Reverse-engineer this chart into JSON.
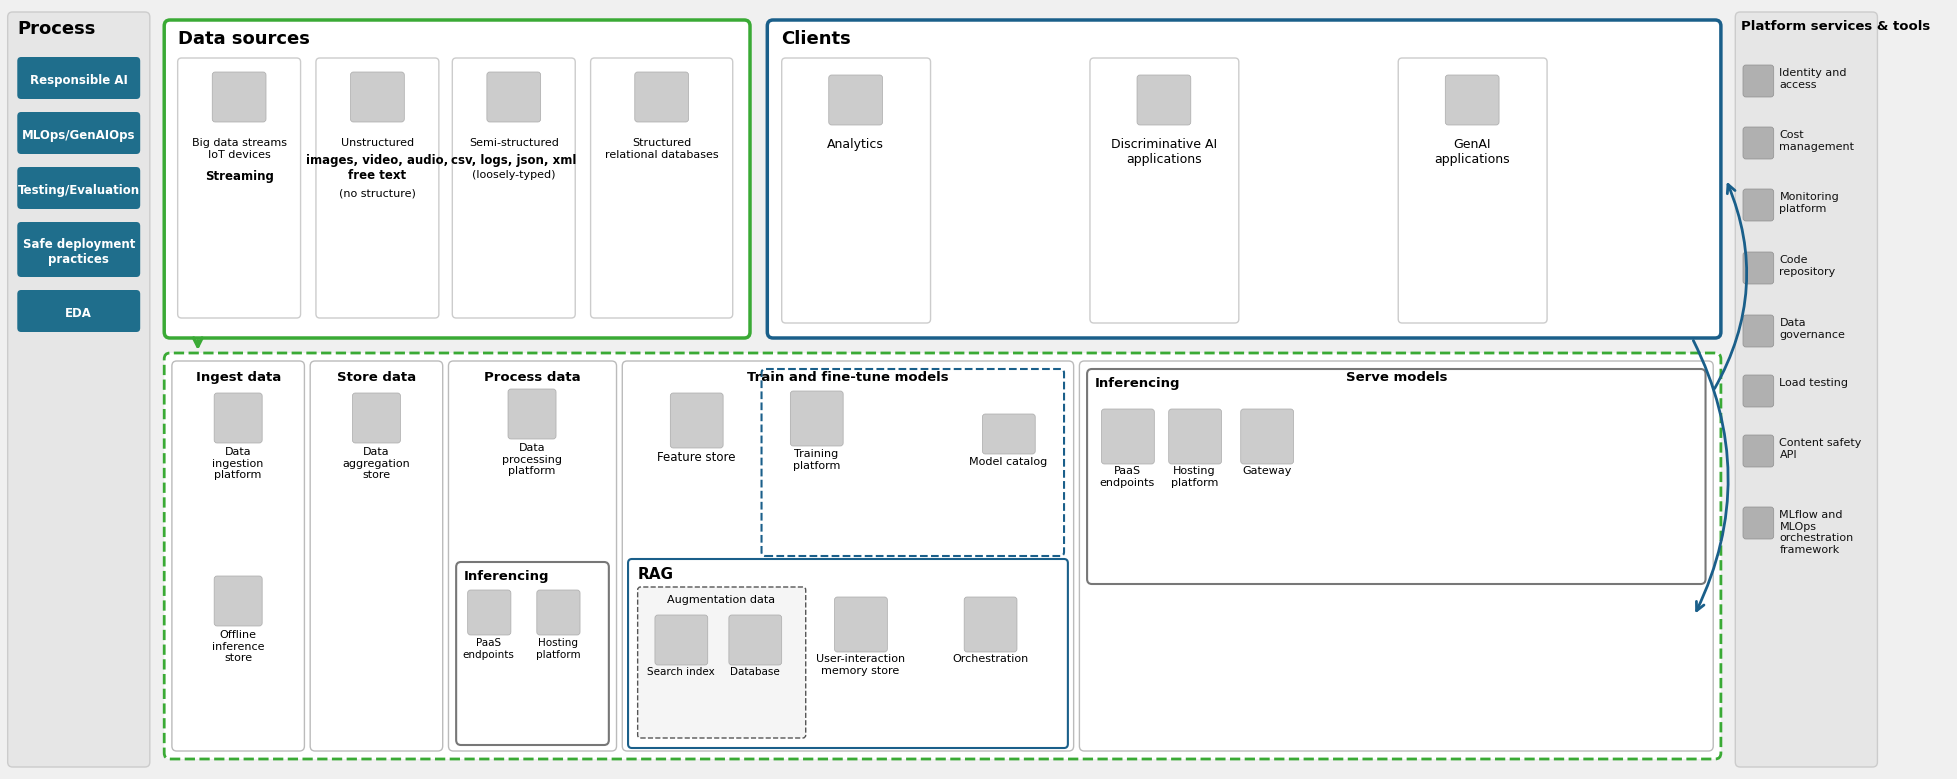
{
  "bg_color": "#f0f0f0",
  "process_title": "Process",
  "process_buttons": [
    "Responsible AI",
    "MLOps/GenAIOps",
    "Testing/Evaluation",
    "Safe deployment\npractices",
    "EDA"
  ],
  "btn_color": "#1f6e8c",
  "btn_text_color": "#ffffff",
  "datasources_title": "Data sources",
  "green_border": "#3aaa35",
  "blue_border": "#1a5f8a",
  "datasources_items": [
    {
      "label": "Big data streams\nIoT devices\n**Streaming**"
    },
    {
      "label": "Unstructured\n**images, video, audio,\nfree text**\n(no structure)"
    },
    {
      "label": "Semi-structured\n**csv, logs, json, xml**\n(loosely-typed)"
    },
    {
      "label": "Structured\nrelational databases"
    }
  ],
  "clients_title": "Clients",
  "clients_items": [
    "Analytics",
    "Discriminative AI\napplications",
    "GenAI\napplications"
  ],
  "platform_title": "Platform services & tools",
  "platform_items": [
    "Identity and\naccess",
    "Cost\nmanagement",
    "Monitoring\nplatform",
    "Code\nrepository",
    "Data\ngovernance",
    "Load testing",
    "Content safety\nAPI",
    "MLflow and\nMLOps\norchestration\nframework"
  ],
  "bottom_sections": [
    "Ingest data",
    "Store data",
    "Process data",
    "Train and fine-tune models",
    "Serve models"
  ],
  "ingest_items": [
    "Data\ningestion\nplatform",
    "Offline\ninference\nstore"
  ],
  "store_items": [
    "Data\naggregation\nstore"
  ],
  "process_items": [
    "Data\nprocessing\nplatform"
  ],
  "train_items_top": [
    "Feature store"
  ],
  "train_items_bot": [
    "Training\nplatform",
    "Model catalog"
  ],
  "serve_inf_items": [
    "PaaS\nendpoints",
    "Hosting\nplatform",
    "Gateway"
  ],
  "rag_items": [
    "Search index",
    "Database"
  ],
  "rag_bottom": [
    "User-interaction\nmemory store",
    "Orchestration"
  ],
  "inf_process_items": [
    "PaaS\nendpoints",
    "Hosting\nplatform"
  ]
}
